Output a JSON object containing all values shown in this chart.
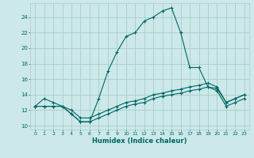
{
  "title": "",
  "xlabel": "Humidex (Indice chaleur)",
  "background_color": "#cce8e8",
  "grid_color": "#aacccc",
  "line_color": "#006666",
  "xlim": [
    -0.5,
    23.5
  ],
  "ylim": [
    9.5,
    25.8
  ],
  "xticks": [
    0,
    1,
    2,
    3,
    4,
    5,
    6,
    7,
    8,
    9,
    10,
    11,
    12,
    13,
    14,
    15,
    16,
    17,
    18,
    19,
    20,
    21,
    22,
    23
  ],
  "yticks": [
    10,
    12,
    14,
    16,
    18,
    20,
    22,
    24
  ],
  "line1_x": [
    0,
    1,
    2,
    3,
    4,
    5,
    6,
    7,
    8,
    9,
    10,
    11,
    12,
    13,
    14,
    15,
    16,
    17,
    18,
    19,
    20,
    21,
    22,
    23
  ],
  "line1_y": [
    12.5,
    13.5,
    13.0,
    12.5,
    11.5,
    10.5,
    10.5,
    13.5,
    17.0,
    19.5,
    21.5,
    22.0,
    23.5,
    24.0,
    24.8,
    25.2,
    22.0,
    17.5,
    17.5,
    15.0,
    14.8,
    13.0,
    13.5,
    14.0
  ],
  "line2_x": [
    0,
    1,
    2,
    3,
    4,
    5,
    6,
    7,
    8,
    9,
    10,
    11,
    12,
    13,
    14,
    15,
    16,
    17,
    18,
    19,
    20,
    21,
    22,
    23
  ],
  "line2_y": [
    12.5,
    12.5,
    12.5,
    12.5,
    12.0,
    11.0,
    11.0,
    11.5,
    12.0,
    12.5,
    13.0,
    13.2,
    13.5,
    14.0,
    14.2,
    14.5,
    14.7,
    15.0,
    15.2,
    15.5,
    15.0,
    13.0,
    13.5,
    14.0
  ],
  "line3_x": [
    0,
    1,
    2,
    3,
    4,
    5,
    6,
    7,
    8,
    9,
    10,
    11,
    12,
    13,
    14,
    15,
    16,
    17,
    18,
    19,
    20,
    21,
    22,
    23
  ],
  "line3_y": [
    12.5,
    12.5,
    12.5,
    12.5,
    11.5,
    10.5,
    10.5,
    11.0,
    11.5,
    12.0,
    12.5,
    12.8,
    13.0,
    13.5,
    13.8,
    14.0,
    14.2,
    14.5,
    14.7,
    15.0,
    14.5,
    12.5,
    13.0,
    13.5
  ]
}
